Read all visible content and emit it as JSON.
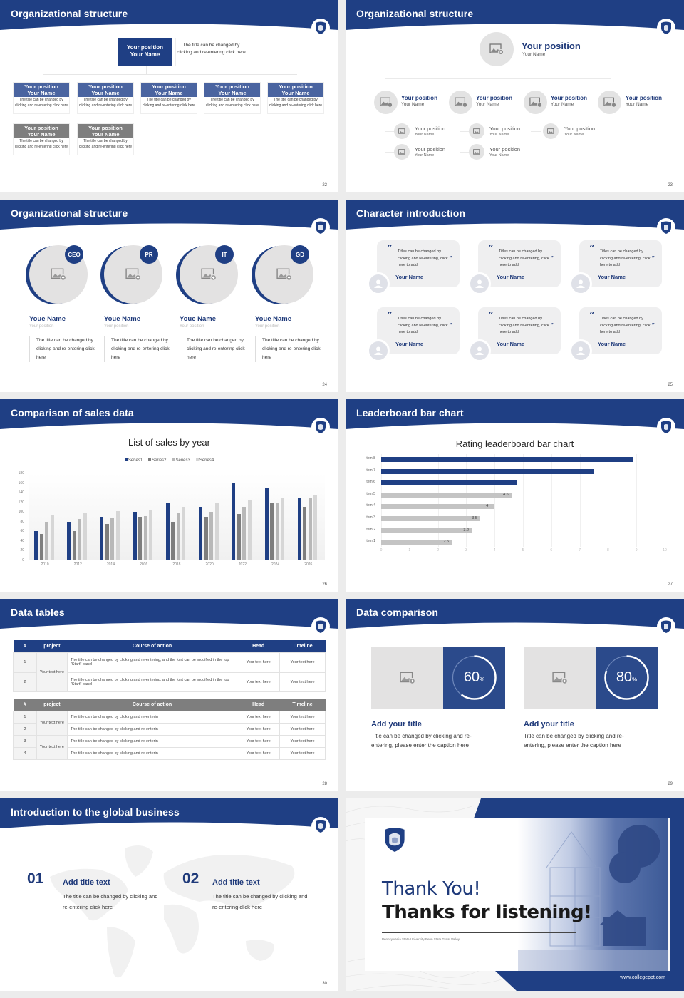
{
  "colors": {
    "navy": "#1f3f84",
    "navy_text": "#1f3a7a",
    "mid_blue": "#4a64a0",
    "gray_bar": "#7e7e7e",
    "light_gray": "#c8c8c8",
    "placeholder_gray": "#e3e2e2"
  },
  "slides": [
    {
      "page": "22",
      "title": "Organizational structure",
      "top": {
        "position": "Your position",
        "name": "Your Name",
        "desc": "The title can be changed by clicking and re-entering click here"
      },
      "boxes": [
        {
          "position": "Your position",
          "name": "Your Name",
          "desc": "The title can be changed by clicking and re-entering click here",
          "style": "blue"
        },
        {
          "position": "Your position",
          "name": "Your Name",
          "desc": "The title can be changed by clicking and re-entering click here",
          "style": "blue"
        },
        {
          "position": "Your position",
          "name": "Your Name",
          "desc": "The title can be changed by clicking and re-entering click here",
          "style": "blue"
        },
        {
          "position": "Your position",
          "name": "Your Name",
          "desc": "The title can be changed by clicking and re-entering click here",
          "style": "blue"
        },
        {
          "position": "Your position",
          "name": "Your Name",
          "desc": "The title can be changed by clicking and re-entering click here",
          "style": "blue"
        },
        {
          "position": "Your position",
          "name": "Your Name",
          "desc": "The title can be changed by clicking and re-entering click here",
          "style": "gray"
        },
        {
          "position": "Your position",
          "name": "Your Name",
          "desc": "The title can be changed by clicking and re-entering click here",
          "style": "gray"
        }
      ]
    },
    {
      "page": "23",
      "title": "Organizational structure",
      "top": {
        "position": "Your position",
        "name": "Your Name"
      },
      "level2": [
        {
          "position": "Your position",
          "name": "Your Name"
        },
        {
          "position": "Your position",
          "name": "Your Name"
        },
        {
          "position": "Your position",
          "name": "Your Name"
        },
        {
          "position": "Your position",
          "name": "Your Name"
        }
      ],
      "level3": [
        {
          "position": "Your position",
          "name": "Your Name"
        },
        {
          "position": "Your position",
          "name": "Your Name"
        },
        {
          "position": "Your position",
          "name": "Your Name"
        },
        {
          "position": "Your position",
          "name": "Your Name"
        },
        {
          "position": "Your position",
          "name": "Your Name"
        }
      ]
    },
    {
      "page": "24",
      "title": "Organizational structure",
      "members": [
        {
          "badge": "CEO",
          "name": "Youe Name",
          "position": "Your position",
          "desc": "The title can be changed by clicking and re-entering click here"
        },
        {
          "badge": "PR",
          "name": "Youe Name",
          "position": "Your position",
          "desc": "The title can be changed by clicking and re-entering click here"
        },
        {
          "badge": "IT",
          "name": "Youe Name",
          "position": "Your position",
          "desc": "The title can be changed by clicking and re-entering click here"
        },
        {
          "badge": "GD",
          "name": "Youe Name",
          "position": "Your position",
          "desc": "The title can be changed by clicking and re-entering click here"
        }
      ]
    },
    {
      "page": "25",
      "title": "Character introduction",
      "quote_open": "“",
      "quote_close": "”",
      "cards": [
        {
          "text": "Titles can be changed by clicking and re-entering, click here to add",
          "name": "Your Name"
        },
        {
          "text": "Titles can be changed by clicking and re-entering, click here to add",
          "name": "Your Name"
        },
        {
          "text": "Titles can be changed by clicking and re-entering, click here to add",
          "name": "Your Name"
        },
        {
          "text": "Titles can be changed by clicking and re-entering, click here to add",
          "name": "Your Name"
        },
        {
          "text": "Titles can be changed by clicking and re-entering, click here to add",
          "name": "Your Name"
        },
        {
          "text": "Titles can be changed by clicking and re-entering, click here to add",
          "name": "Your Name"
        }
      ]
    },
    {
      "page": "26",
      "title": "Comparison of sales data",
      "chart_title": "List of sales by year"
    },
    {
      "page": "27",
      "title": "Leaderboard bar chart",
      "chart_title": "Rating leaderboard bar chart"
    },
    {
      "page": "28",
      "title": "Data tables",
      "table1": {
        "headers": [
          "#",
          "project",
          "Course of action",
          "Head",
          "Timeline"
        ],
        "project": "Your text here",
        "rows": [
          {
            "num": "1",
            "action": "The title can be changed by clicking and re-entering, and the font can be modified in the top \"Start\" panel",
            "head": "Your text here",
            "timeline": "Your text here"
          },
          {
            "num": "2",
            "action": "The title can be changed by clicking and re-entering, and the font can be modified in the top \"Start\" panel",
            "head": "Your text here",
            "timeline": "Your text here"
          }
        ]
      },
      "table2": {
        "headers": [
          "#",
          "project",
          "Course of action",
          "Head",
          "Timeline"
        ],
        "projects": [
          "Your text here",
          "Your text here"
        ],
        "rows": [
          {
            "num": "1",
            "action": "The title can be changed by clicking and re-enterin",
            "head": "Your text here",
            "timeline": "Your text here"
          },
          {
            "num": "2",
            "action": "The title can be changed by clicking and re-enterin",
            "head": "Your text here",
            "timeline": "Your text here"
          },
          {
            "num": "3",
            "action": "The title can be changed by clicking and re-enterin",
            "head": "Your text here",
            "timeline": "Your text here"
          },
          {
            "num": "4",
            "action": "The title can be changed by clicking and re-enterin",
            "head": "Your text here",
            "timeline": "Your text here"
          }
        ]
      }
    },
    {
      "page": "29",
      "title": "Data comparison",
      "items": [
        {
          "value": "60",
          "unit": "%",
          "percent": 60,
          "title": "Add your title",
          "desc": "Title can be changed by clicking and re-entering, please enter the caption here"
        },
        {
          "value": "80",
          "unit": "%",
          "percent": 80,
          "title": "Add your title",
          "desc": "Title can be changed by clicking and re-entering, please enter the caption here"
        }
      ]
    },
    {
      "page": "30",
      "title": "Introduction to the global business",
      "items": [
        {
          "num": "01",
          "title": "Add title text",
          "desc": "The title can be changed by clicking and re-entering click here"
        },
        {
          "num": "02",
          "title": "Add title text",
          "desc": "The title can be changed by clicking and re-entering click here"
        }
      ]
    },
    {
      "title_line1": "Thank You!",
      "title_line2": "Thanks for listening!",
      "subtitle": "Pennsylvania State University-Penn State Great Valley",
      "url": "www.collegeppt.com"
    }
  ],
  "chart_data": [
    {
      "type": "bar",
      "title": "List of sales by year",
      "categories": [
        "2010",
        "2012",
        "2014",
        "2016",
        "2018",
        "2020",
        "2022",
        "2024",
        "2026"
      ],
      "series": [
        {
          "name": "Series1",
          "color": "#1f3f84",
          "values": [
            60,
            80,
            90,
            100,
            120,
            110,
            160,
            150,
            130
          ]
        },
        {
          "name": "Series2",
          "color": "#7e7e7e",
          "values": [
            55,
            60,
            75,
            90,
            80,
            90,
            96,
            120,
            110
          ]
        },
        {
          "name": "Series3",
          "color": "#b8b8b8",
          "values": [
            80,
            85,
            88,
            92,
            98,
            100,
            110,
            120,
            130
          ]
        },
        {
          "name": "Series4",
          "color": "#d6d6d6",
          "values": [
            95,
            98,
            102,
            105,
            110,
            120,
            126,
            130,
            135
          ]
        }
      ],
      "yticks": [
        "0",
        "20",
        "40",
        "60",
        "80",
        "100",
        "120",
        "140",
        "160",
        "180"
      ],
      "ylim": [
        0,
        180
      ],
      "xlabel": "",
      "ylabel": "",
      "legend_position": "top",
      "grid": false
    },
    {
      "type": "bar",
      "orientation": "horizontal",
      "title": "Rating leaderboard bar chart",
      "categories": [
        "Item 8",
        "Item 7",
        "Item 6",
        "Item 5",
        "Item 4",
        "Item 3",
        "Item 2",
        "Item 1"
      ],
      "values": [
        8.9,
        7.5,
        4.8,
        4.6,
        4,
        3.5,
        3.2,
        2.5
      ],
      "labels": [
        "",
        "",
        "",
        "4.6",
        "4",
        "3.5",
        "3.2",
        "2.5"
      ],
      "highlight": [
        true,
        true,
        true,
        false,
        false,
        false,
        false,
        false
      ],
      "xticks": [
        "0",
        "1",
        "2",
        "3",
        "4",
        "5",
        "6",
        "7",
        "8",
        "9",
        "10"
      ],
      "xlim": [
        0,
        10
      ],
      "grid": true
    }
  ]
}
